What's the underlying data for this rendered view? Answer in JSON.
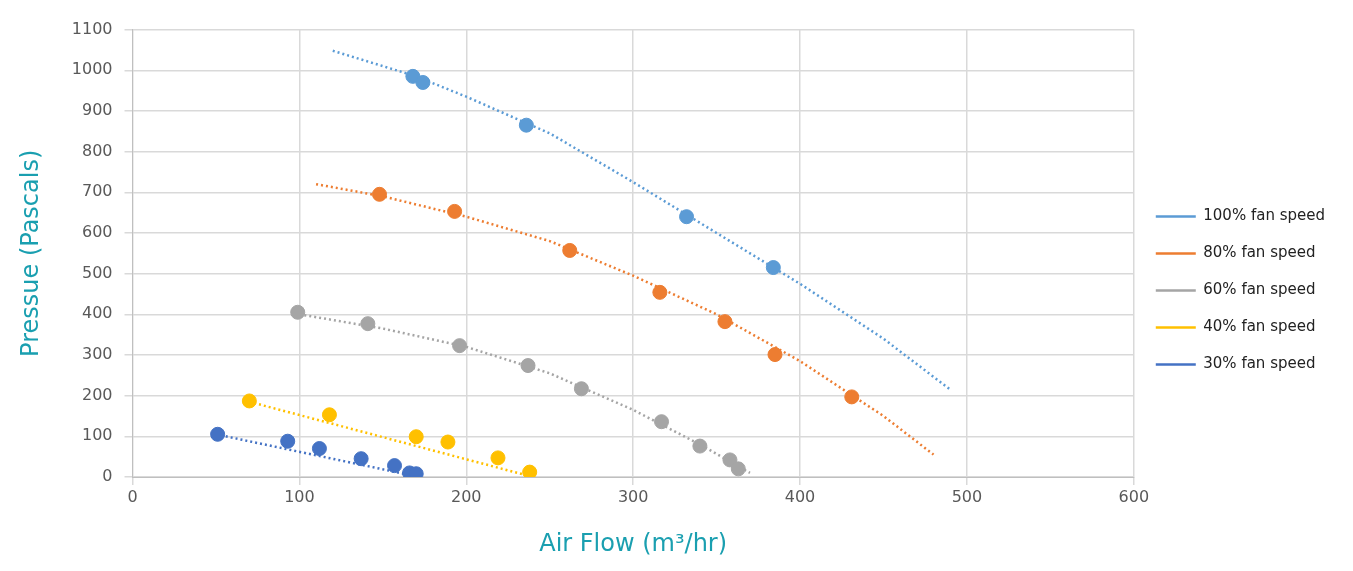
{
  "chart_data": {
    "type": "scatter",
    "xlabel": "Air Flow (m³/hr)",
    "ylabel": "Pressue (Pascals)",
    "xlim": [
      0,
      600
    ],
    "xticks": [
      0,
      100,
      200,
      300,
      400,
      500,
      600
    ],
    "ylim": [
      0,
      1100
    ],
    "yticks": [
      0,
      100,
      200,
      300,
      400,
      500,
      600,
      700,
      800,
      900,
      1000,
      1100
    ],
    "grid": true,
    "legend": "right",
    "series": [
      {
        "marker": "circle",
        "color": "#5b9bd5",
        "x": [
          168,
          174,
          236,
          332,
          384
        ],
        "values": [
          985,
          970,
          865,
          640,
          515
        ]
      },
      {
        "marker": "circle",
        "color": "#ed7d31",
        "x": [
          148,
          193,
          262,
          316,
          355,
          385,
          431
        ],
        "values": [
          695,
          653,
          557,
          454,
          382,
          301,
          197
        ]
      },
      {
        "marker": "circle",
        "color": "#a5a5a5",
        "x": [
          99,
          141,
          196,
          237,
          269,
          317,
          340,
          358,
          363
        ],
        "values": [
          405,
          377,
          323,
          274,
          217,
          136,
          76,
          42,
          20
        ]
      },
      {
        "marker": "circle",
        "color": "#ffc000",
        "x": [
          70,
          118,
          170,
          189,
          219,
          238
        ],
        "values": [
          187,
          153,
          99,
          86,
          47,
          12
        ]
      },
      {
        "marker": "circle",
        "color": "#4472c4",
        "x": [
          51,
          93,
          112,
          137,
          157,
          166,
          170
        ],
        "values": [
          105,
          88,
          70,
          45,
          28,
          10,
          8
        ]
      },
      {
        "type": "line",
        "name": "100% fan speed",
        "marker": "none",
        "line_style": "dotted",
        "color": "#5b9bd5",
        "x": [
          120,
          170,
          200,
          250,
          300,
          350,
          400,
          450,
          490
        ],
        "values": [
          1048,
          985,
          935,
          845,
          725,
          600,
          475,
          340,
          215
        ]
      },
      {
        "type": "line",
        "name": "80% fan speed",
        "marker": "none",
        "line_style": "dotted",
        "color": "#ed7d31",
        "x": [
          110,
          150,
          200,
          250,
          300,
          350,
          400,
          450,
          480
        ],
        "values": [
          720,
          690,
          640,
          580,
          495,
          400,
          285,
          150,
          55
        ]
      },
      {
        "type": "line",
        "name": "60% fan speed",
        "marker": "none",
        "line_style": "dotted",
        "color": "#a5a5a5",
        "x": [
          100,
          150,
          200,
          250,
          300,
          340,
          370
        ],
        "values": [
          400,
          365,
          320,
          255,
          165,
          80,
          10
        ]
      },
      {
        "type": "line",
        "name": "40% fan speed",
        "marker": "none",
        "line_style": "dotted",
        "color": "#ffc000",
        "x": [
          70,
          240
        ],
        "values": [
          185,
          0
        ]
      },
      {
        "type": "line",
        "name": "30% fan speed",
        "marker": "none",
        "line_style": "dotted",
        "color": "#4472c4",
        "x": [
          50,
          172
        ],
        "values": [
          105,
          0
        ]
      }
    ]
  }
}
